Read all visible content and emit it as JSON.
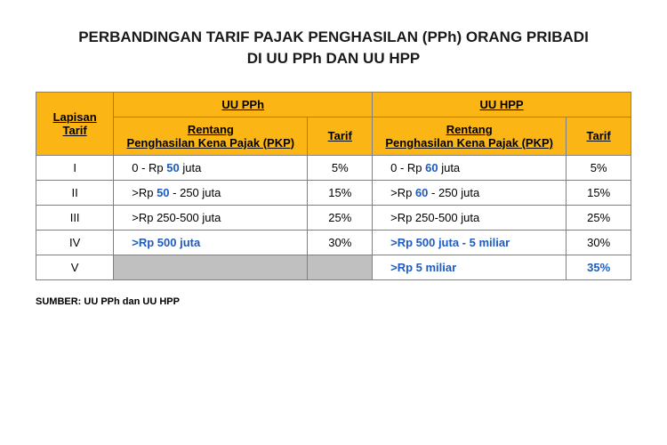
{
  "title_line1": "PERBANDINGAN TARIF PAJAK PENGHASILAN (PPh) ORANG PRIBADI",
  "title_line2": "DI UU PPh DAN UU HPP",
  "headers": {
    "lapisan": "Lapisan Tarif",
    "uu_pph": "UU PPh",
    "uu_hpp": "UU HPP",
    "rentang_l1": "Rentang",
    "rentang_l2": "Penghasilan Kena Pajak (PKP)",
    "rentang_hpp_l1": "Rentang",
    "rentang_hpp_l2": "Penghasilan Kena Pajak (PKP)",
    "tarif": "Tarif"
  },
  "rows": [
    {
      "layer": "I",
      "pph_pre": "0 - Rp ",
      "pph_bold": "50",
      "pph_post": " juta",
      "pph_all_bold": false,
      "pph_tarif": "5%",
      "hpp_pre": "0 - Rp ",
      "hpp_bold": "60",
      "hpp_post": " juta",
      "hpp_all_bold": false,
      "hpp_tarif": "5%",
      "hpp_tarif_blue": false
    },
    {
      "layer": "II",
      "pph_pre": ">Rp   ",
      "pph_bold": "50",
      "pph_post": " - 250 juta",
      "pph_all_bold": false,
      "pph_tarif": "15%",
      "hpp_pre": ">Rp   ",
      "hpp_bold": "60",
      "hpp_post": " - 250 juta",
      "hpp_all_bold": false,
      "hpp_tarif": "15%",
      "hpp_tarif_blue": false
    },
    {
      "layer": "III",
      "pph_pre": ">Rp 250-500 juta",
      "pph_bold": "",
      "pph_post": "",
      "pph_all_bold": false,
      "pph_tarif": "25%",
      "hpp_pre": ">Rp 250-500 juta",
      "hpp_bold": "",
      "hpp_post": "",
      "hpp_all_bold": false,
      "hpp_tarif": "25%",
      "hpp_tarif_blue": false
    },
    {
      "layer": "IV",
      "pph_pre": "",
      "pph_bold": ">Rp 500 juta",
      "pph_post": "",
      "pph_all_bold": true,
      "pph_tarif": "30%",
      "hpp_pre": "",
      "hpp_bold": ">Rp 500 juta - 5 miliar",
      "hpp_post": "",
      "hpp_all_bold": true,
      "hpp_tarif": "30%",
      "hpp_tarif_blue": false
    },
    {
      "layer": "V",
      "pph_pre": "",
      "pph_bold": "",
      "pph_post": "",
      "pph_all_bold": false,
      "pph_grey": true,
      "pph_tarif": "",
      "pph_tarif_grey": true,
      "hpp_pre": "",
      "hpp_bold": ">Rp 5 miliar",
      "hpp_post": "",
      "hpp_all_bold": true,
      "hpp_tarif": "35%",
      "hpp_tarif_blue": true
    }
  ],
  "source_label": "SUMBER: UU PPh dan UU HPP",
  "colors": {
    "header_bg": "#fbb615",
    "blue": "#1f5bbf",
    "grey": "#c0c0c0",
    "border": "#808080"
  }
}
